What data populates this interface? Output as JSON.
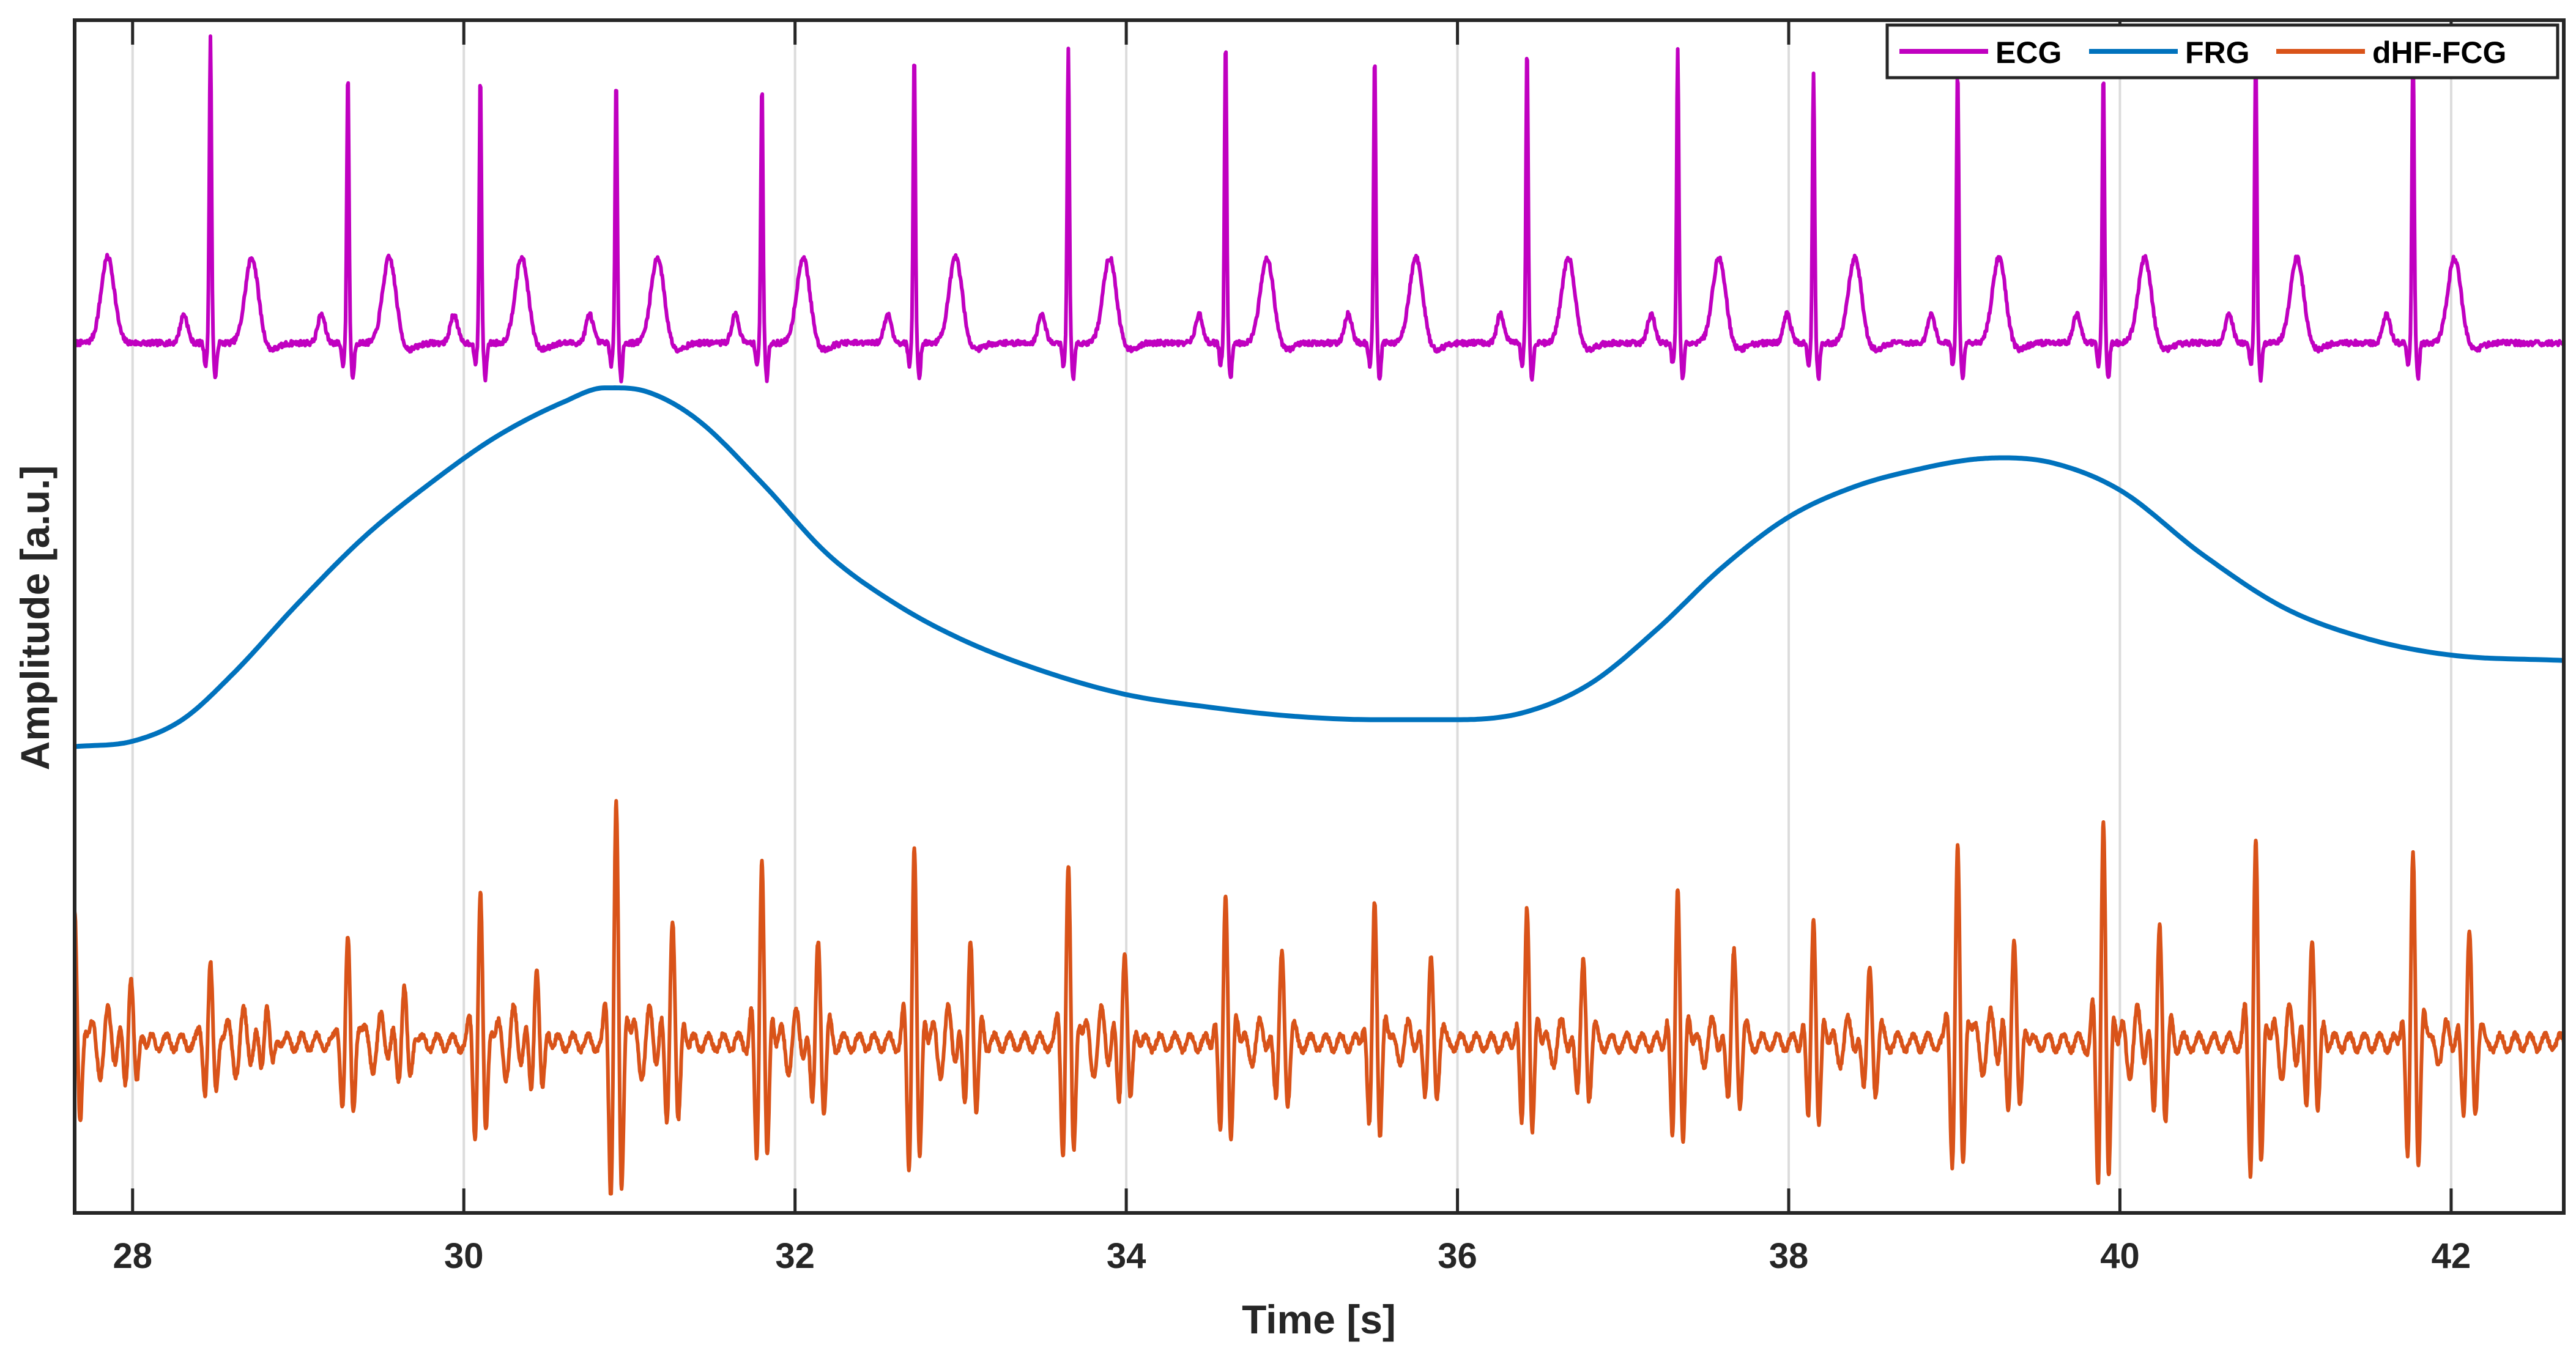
{
  "chart_data": {
    "type": "line",
    "title": "",
    "xlabel": "Time [s]",
    "ylabel": "Amplitude [a.u.]",
    "xlim": [
      27.65,
      42.68
    ],
    "ylim": [
      -4.85,
      1.8
    ],
    "x_ticks": [
      28,
      30,
      32,
      34,
      36,
      38,
      40,
      42
    ],
    "x_tick_labels": [
      "28",
      "30",
      "32",
      "34",
      "36",
      "38",
      "40",
      "42"
    ],
    "y_tick_labels_shown": false,
    "grid": "vertical",
    "legend_position": "top-right",
    "series": [
      {
        "name": "ECG",
        "color": "#C000C0",
        "baseline": 0.0,
        "r_peak_times": [
          28.47,
          29.3,
          30.1,
          30.92,
          31.8,
          32.72,
          33.65,
          34.6,
          35.5,
          36.42,
          37.33,
          38.15,
          39.02,
          39.9,
          40.82,
          41.77
        ],
        "r_peak_amplitudes": [
          1.7,
          1.52,
          1.5,
          1.46,
          1.44,
          1.62,
          1.63,
          1.7,
          1.61,
          1.66,
          1.63,
          1.5,
          1.53,
          1.52,
          1.62,
          1.68
        ],
        "t_wave_amplitude": 0.48
      },
      {
        "name": "FRG",
        "color": "#0072BD",
        "points": [
          [
            27.65,
            -2.25
          ],
          [
            28.0,
            -2.22
          ],
          [
            28.3,
            -2.1
          ],
          [
            28.6,
            -1.85
          ],
          [
            29.0,
            -1.45
          ],
          [
            29.4,
            -1.08
          ],
          [
            29.8,
            -0.78
          ],
          [
            30.2,
            -0.52
          ],
          [
            30.6,
            -0.33
          ],
          [
            30.85,
            -0.25
          ],
          [
            31.1,
            -0.27
          ],
          [
            31.4,
            -0.42
          ],
          [
            31.8,
            -0.78
          ],
          [
            32.2,
            -1.18
          ],
          [
            32.6,
            -1.45
          ],
          [
            33.0,
            -1.65
          ],
          [
            33.5,
            -1.83
          ],
          [
            34.0,
            -1.96
          ],
          [
            34.5,
            -2.03
          ],
          [
            35.0,
            -2.08
          ],
          [
            35.5,
            -2.1
          ],
          [
            36.0,
            -2.1
          ],
          [
            36.4,
            -2.06
          ],
          [
            36.8,
            -1.9
          ],
          [
            37.2,
            -1.6
          ],
          [
            37.6,
            -1.25
          ],
          [
            38.0,
            -0.97
          ],
          [
            38.4,
            -0.8
          ],
          [
            38.8,
            -0.7
          ],
          [
            39.1,
            -0.65
          ],
          [
            39.3,
            -0.64
          ],
          [
            39.6,
            -0.67
          ],
          [
            40.0,
            -0.82
          ],
          [
            40.5,
            -1.18
          ],
          [
            41.0,
            -1.48
          ],
          [
            41.5,
            -1.65
          ],
          [
            42.0,
            -1.74
          ],
          [
            42.68,
            -1.77
          ]
        ]
      },
      {
        "name": "dHF-FCG",
        "color": "#D95319",
        "baseline": -3.9,
        "beat_times": [
          27.65,
          28.47,
          29.3,
          30.1,
          30.92,
          31.8,
          32.72,
          33.65,
          34.6,
          35.5,
          36.42,
          37.33,
          38.15,
          39.02,
          39.9,
          40.82,
          41.77
        ],
        "beat_peak_amplitudes": [
          0.7,
          0.4,
          0.55,
          0.8,
          1.3,
          1.05,
          1.1,
          0.95,
          0.85,
          0.78,
          0.78,
          0.88,
          0.72,
          1.05,
          1.25,
          1.12,
          1.05
        ]
      }
    ]
  }
}
